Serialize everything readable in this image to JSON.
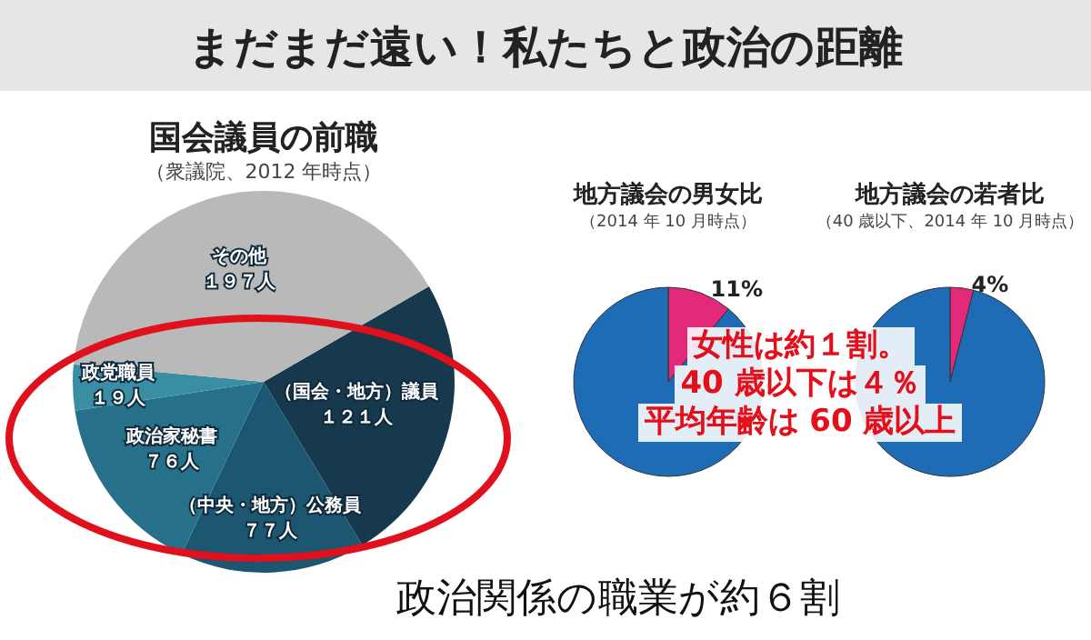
{
  "chart_data": [
    {
      "type": "pie",
      "title": "国会議員の前職",
      "subtitle": "（衆議院、2012 年時点）",
      "categories": [
        "（国会・地方）議員",
        "（中央・地方）公務員",
        "政治家秘書",
        "政党職員",
        "その他"
      ],
      "values": [
        121,
        77,
        76,
        19,
        197
      ],
      "value_labels": [
        "１２１人",
        "７７人",
        "７６人",
        "１９人",
        "１９７人"
      ],
      "colors": [
        "#17394d",
        "#1d5670",
        "#27708a",
        "#3a8ea3",
        "#b9b9b9"
      ],
      "annotations": [
        "まだまだ遠い！私たちと政治の距離",
        "政治関係の職業が約６割"
      ]
    },
    {
      "type": "pie",
      "title": "地方議会の男女比",
      "subtitle": "（2014 年 10 月時点）",
      "categories": [
        null,
        null
      ],
      "values": [
        11,
        89
      ],
      "value_labels": [
        "11%",
        null
      ],
      "colors": [
        "#e3297a",
        "#1e6cb6"
      ],
      "annotations": [
        "女性は約１割。",
        "40 歳以下は４％",
        "平均年齢は 60 歳以上"
      ]
    },
    {
      "type": "pie",
      "title": "地方議会の若者比",
      "subtitle": "（40 歳以下、2014 年 10 月時点）",
      "categories": [
        null,
        null
      ],
      "values": [
        4,
        96
      ],
      "value_labels": [
        "4%",
        null
      ],
      "colors": [
        "#e3297a",
        "#1e6cb6"
      ]
    }
  ]
}
